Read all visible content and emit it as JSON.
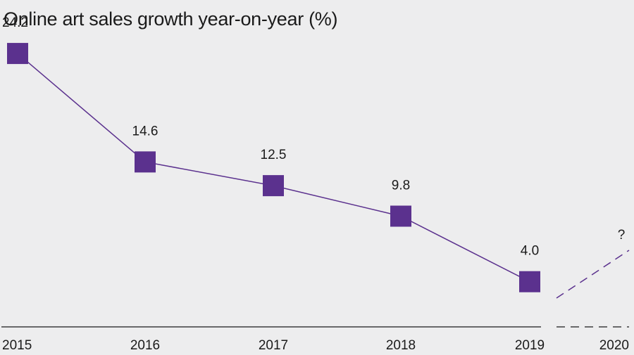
{
  "chart_data": {
    "type": "line",
    "title": "Online art sales growth year-on-year (%)",
    "xlabel": "",
    "ylabel": "",
    "categories": [
      "2015",
      "2016",
      "2017",
      "2018",
      "2019",
      "2020"
    ],
    "series": [
      {
        "values": [
          24.2,
          14.6,
          12.5,
          9.8,
          4.0,
          null
        ],
        "data_labels": [
          "24.2",
          "14.6",
          "12.5",
          "9.8",
          "4.0"
        ],
        "color": "#5b318e"
      }
    ],
    "projection": {
      "label": "?",
      "style": "dashed"
    },
    "ylim": [
      0,
      28
    ],
    "grid": false,
    "legend": "none",
    "background_color": "#ededee",
    "axis_color": "#1a1a1a"
  }
}
